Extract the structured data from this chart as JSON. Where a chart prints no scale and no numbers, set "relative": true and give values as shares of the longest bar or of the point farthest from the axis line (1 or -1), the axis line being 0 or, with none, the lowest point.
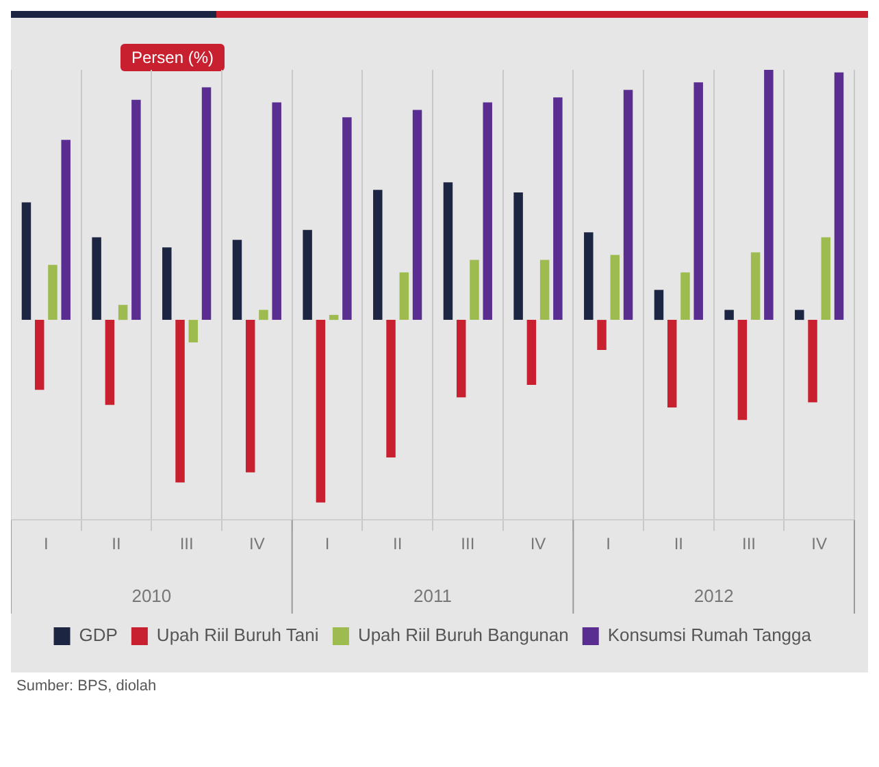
{
  "chart_data": {
    "type": "bar",
    "ylabel": "Persen (%)",
    "relative": true,
    "grid": "x",
    "legend": "bottom",
    "categories": [
      "I",
      "II",
      "III",
      "IV",
      "I",
      "II",
      "III",
      "IV",
      "I",
      "II",
      "III",
      "IV"
    ],
    "series": [
      {
        "name": "GDP",
        "color": "#1c2541",
        "values": [
          0.47,
          0.33,
          0.29,
          0.32,
          0.36,
          0.52,
          0.55,
          0.51,
          0.35,
          0.12,
          0.04,
          0.04
        ]
      },
      {
        "name": "Upah Riil Buruh Tani",
        "color": "#c8202f",
        "values": [
          -0.28,
          -0.34,
          -0.65,
          -0.61,
          -0.73,
          -0.55,
          -0.31,
          -0.26,
          -0.12,
          -0.35,
          -0.4,
          -0.33
        ]
      },
      {
        "name": "Upah Riil Buruh Bangunan",
        "color": "#9dbb4f",
        "values": [
          0.22,
          0.06,
          -0.09,
          0.04,
          0.02,
          0.19,
          0.24,
          0.24,
          0.26,
          0.19,
          0.27,
          0.33
        ]
      },
      {
        "name": "Konsumsi Rumah Tangga",
        "color": "#5a2d91",
        "values": [
          0.72,
          0.88,
          0.93,
          0.87,
          0.81,
          0.84,
          0.87,
          0.89,
          0.92,
          0.95,
          1,
          0.99
        ]
      }
    ],
    "annotations": [
      "2010",
      "2011",
      "2012",
      "Sumber: BPS, diolah"
    ]
  }
}
